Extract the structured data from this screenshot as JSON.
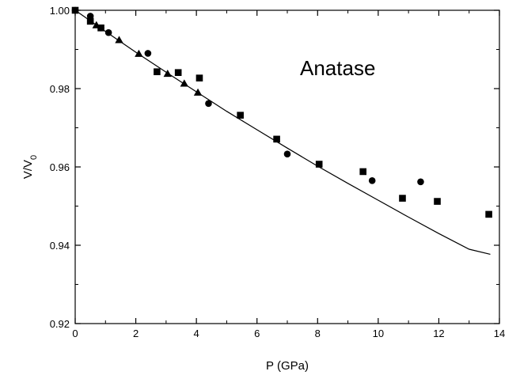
{
  "chart_data": {
    "type": "scatter",
    "title": "",
    "xlabel": "P (GPa)",
    "ylabel": "V/V",
    "ylabel_subscript": "0",
    "annotation": "Anatase",
    "xlim": [
      0,
      14
    ],
    "ylim": [
      0.92,
      1.0
    ],
    "x_ticks": [
      0,
      2,
      4,
      6,
      8,
      10,
      12,
      14
    ],
    "y_ticks": [
      0.92,
      0.94,
      0.96,
      0.98,
      1.0
    ],
    "x_tick_labels": [
      "0",
      "2",
      "4",
      "6",
      "8",
      "10",
      "12",
      "14"
    ],
    "y_tick_labels": [
      "0.92",
      "0.94",
      "0.96",
      "0.98",
      "1.00"
    ],
    "grid": false,
    "series": [
      {
        "marker": "circle",
        "points": [
          {
            "x": 0.0,
            "y": 1.0
          },
          {
            "x": 0.5,
            "y": 0.9985
          },
          {
            "x": 0.85,
            "y": 0.9955
          },
          {
            "x": 1.1,
            "y": 0.9943
          },
          {
            "x": 2.4,
            "y": 0.989
          },
          {
            "x": 4.4,
            "y": 0.9762
          },
          {
            "x": 7.0,
            "y": 0.9633
          },
          {
            "x": 9.8,
            "y": 0.9565
          },
          {
            "x": 11.4,
            "y": 0.9562
          }
        ]
      },
      {
        "marker": "square",
        "points": [
          {
            "x": 0.0,
            "y": 1.0
          },
          {
            "x": 0.5,
            "y": 0.9972
          },
          {
            "x": 0.85,
            "y": 0.9955
          },
          {
            "x": 2.7,
            "y": 0.9843
          },
          {
            "x": 3.4,
            "y": 0.9841
          },
          {
            "x": 4.1,
            "y": 0.9827
          },
          {
            "x": 5.45,
            "y": 0.9732
          },
          {
            "x": 6.65,
            "y": 0.9671
          },
          {
            "x": 8.05,
            "y": 0.9607
          },
          {
            "x": 9.5,
            "y": 0.9588
          },
          {
            "x": 10.8,
            "y": 0.952
          },
          {
            "x": 11.95,
            "y": 0.9512
          },
          {
            "x": 13.65,
            "y": 0.9479
          }
        ]
      },
      {
        "marker": "triangle",
        "points": [
          {
            "x": 0.7,
            "y": 0.9962
          },
          {
            "x": 1.45,
            "y": 0.9924
          },
          {
            "x": 2.1,
            "y": 0.9889
          },
          {
            "x": 3.05,
            "y": 0.9838
          },
          {
            "x": 3.6,
            "y": 0.9813
          },
          {
            "x": 4.05,
            "y": 0.979
          }
        ]
      }
    ],
    "fit_curve": {
      "points": [
        {
          "x": 0.0,
          "y": 1.0
        },
        {
          "x": 1.0,
          "y": 0.9946
        },
        {
          "x": 2.0,
          "y": 0.9893
        },
        {
          "x": 3.0,
          "y": 0.9842
        },
        {
          "x": 4.0,
          "y": 0.9792
        },
        {
          "x": 5.0,
          "y": 0.9742
        },
        {
          "x": 6.0,
          "y": 0.9695
        },
        {
          "x": 7.0,
          "y": 0.9648
        },
        {
          "x": 8.0,
          "y": 0.9602
        },
        {
          "x": 9.0,
          "y": 0.9558
        },
        {
          "x": 10.0,
          "y": 0.9515
        },
        {
          "x": 11.0,
          "y": 0.9472
        },
        {
          "x": 12.0,
          "y": 0.943
        },
        {
          "x": 13.0,
          "y": 0.939
        },
        {
          "x": 13.7,
          "y": 0.9377
        }
      ]
    }
  }
}
